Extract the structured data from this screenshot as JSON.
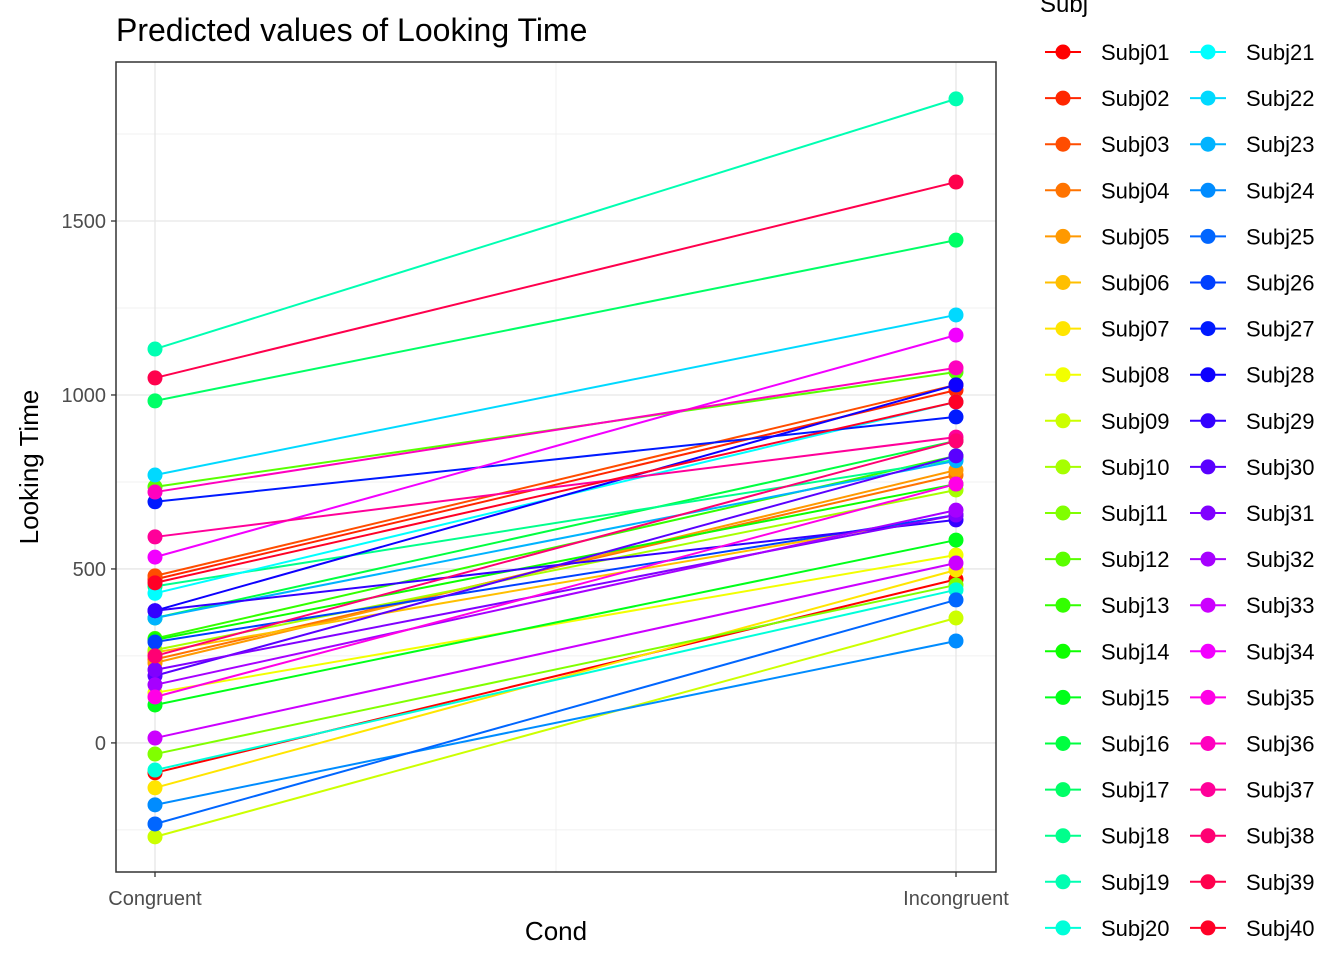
{
  "chart_data": {
    "type": "line",
    "title": "Predicted values of Looking Time",
    "xlabel": "Cond",
    "ylabel": "Looking Time",
    "categories": [
      "Congruent",
      "Incongruent"
    ],
    "ylim": [
      -371,
      1957
    ],
    "yticks": [
      0,
      500,
      1000,
      1500
    ],
    "grid": true,
    "legend": {
      "title": "Subj",
      "placement": "right"
    },
    "series": [
      {
        "name": "Subj01",
        "color": "#FF0000",
        "values": [
          -86,
          470
        ]
      },
      {
        "name": "Subj02",
        "color": "#FF2600",
        "values": [
          470,
          1014
        ]
      },
      {
        "name": "Subj03",
        "color": "#FF4D00",
        "values": [
          480,
          1029
        ]
      },
      {
        "name": "Subj04",
        "color": "#FF7300",
        "values": [
          240,
          770
        ]
      },
      {
        "name": "Subj05",
        "color": "#FF9900",
        "values": [
          230,
          784
        ]
      },
      {
        "name": "Subj06",
        "color": "#FFBF00",
        "values": [
          260,
          655
        ]
      },
      {
        "name": "Subj07",
        "color": "#FFE500",
        "values": [
          -129,
          497
        ]
      },
      {
        "name": "Subj08",
        "color": "#F2FF00",
        "values": [
          144,
          540
        ]
      },
      {
        "name": "Subj09",
        "color": "#CCFF00",
        "values": [
          -270,
          359
        ]
      },
      {
        "name": "Subj10",
        "color": "#A6FF00",
        "values": [
          267,
          727
        ]
      },
      {
        "name": "Subj11",
        "color": "#80FF00",
        "values": [
          -32,
          454
        ]
      },
      {
        "name": "Subj12",
        "color": "#59FF00",
        "values": [
          736,
          1066
        ]
      },
      {
        "name": "Subj13",
        "color": "#33FF00",
        "values": [
          300,
          825
        ]
      },
      {
        "name": "Subj14",
        "color": "#0DFF00",
        "values": [
          296,
          744
        ]
      },
      {
        "name": "Subj15",
        "color": "#00FF1A",
        "values": [
          109,
          583
        ]
      },
      {
        "name": "Subj16",
        "color": "#00FF40",
        "values": [
          359,
          868
        ]
      },
      {
        "name": "Subj17",
        "color": "#00FF66",
        "values": [
          983,
          1445
        ]
      },
      {
        "name": "Subj18",
        "color": "#00FF8C",
        "values": [
          450,
          814
        ]
      },
      {
        "name": "Subj19",
        "color": "#00FFB2",
        "values": [
          1132,
          1851
        ]
      },
      {
        "name": "Subj20",
        "color": "#00FFD9",
        "values": [
          -78,
          440
        ]
      },
      {
        "name": "Subj21",
        "color": "#00FFFF",
        "values": [
          430,
          980
        ]
      },
      {
        "name": "Subj22",
        "color": "#00D9FF",
        "values": [
          770,
          1230
        ]
      },
      {
        "name": "Subj23",
        "color": "#00B3FF",
        "values": [
          359,
          811
        ]
      },
      {
        "name": "Subj24",
        "color": "#008CFF",
        "values": [
          -178,
          293
        ]
      },
      {
        "name": "Subj25",
        "color": "#0066FF",
        "values": [
          -233,
          411
        ]
      },
      {
        "name": "Subj26",
        "color": "#0040FF",
        "values": [
          290,
          655
        ]
      },
      {
        "name": "Subj27",
        "color": "#001AFF",
        "values": [
          693,
          937
        ]
      },
      {
        "name": "Subj28",
        "color": "#0D00FF",
        "values": [
          380,
          1029
        ]
      },
      {
        "name": "Subj29",
        "color": "#3300FF",
        "values": [
          380,
          641
        ]
      },
      {
        "name": "Subj30",
        "color": "#5900FF",
        "values": [
          193,
          825
        ]
      },
      {
        "name": "Subj31",
        "color": "#8000FF",
        "values": [
          210,
          655
        ]
      },
      {
        "name": "Subj32",
        "color": "#A600FF",
        "values": [
          167,
          669
        ]
      },
      {
        "name": "Subj33",
        "color": "#CC00FF",
        "values": [
          14,
          517
        ]
      },
      {
        "name": "Subj34",
        "color": "#F200FF",
        "values": [
          534,
          1172
        ]
      },
      {
        "name": "Subj35",
        "color": "#FF00E6",
        "values": [
          132,
          744
        ]
      },
      {
        "name": "Subj36",
        "color": "#FF00BF",
        "values": [
          721,
          1078
        ]
      },
      {
        "name": "Subj37",
        "color": "#FF0099",
        "values": [
          592,
          879
        ]
      },
      {
        "name": "Subj38",
        "color": "#FF0073",
        "values": [
          250,
          868
        ]
      },
      {
        "name": "Subj39",
        "color": "#FF004D",
        "values": [
          1049,
          1612
        ]
      },
      {
        "name": "Subj40",
        "color": "#FF0026",
        "values": [
          460,
          980
        ]
      }
    ]
  }
}
